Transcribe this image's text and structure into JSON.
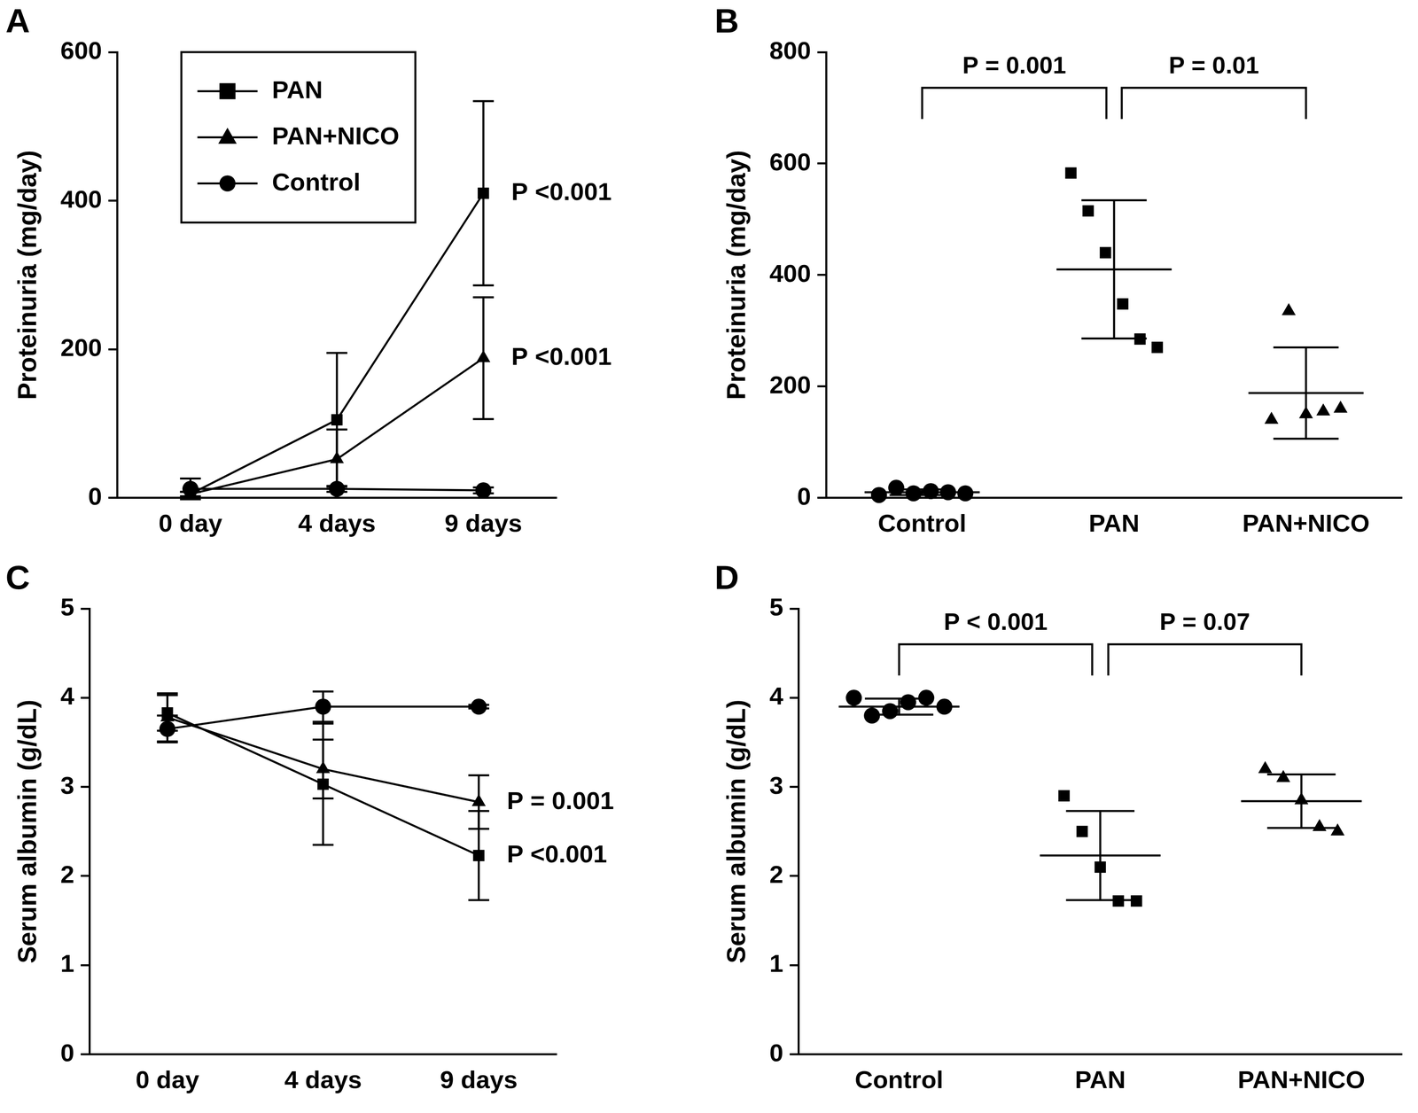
{
  "chart_data": [
    {
      "panel": "A",
      "type": "line",
      "y_label": "Proteinuria (mg/day)",
      "categories": [
        "0 day",
        "4 days",
        "9 days"
      ],
      "ylim": [
        0,
        600
      ],
      "yticks": [
        0,
        200,
        400,
        600
      ],
      "grid": false,
      "legend": "upper left",
      "series": [
        {
          "name": "PAN",
          "color": "#000000",
          "marker": "square",
          "values": [
            5,
            105,
            410
          ],
          "errors": [
            3,
            90,
            124
          ]
        },
        {
          "name": "PAN+NICO",
          "color": "#000000",
          "marker": "triangle",
          "values": [
            5,
            52,
            188
          ],
          "errors": [
            3,
            40,
            82
          ]
        },
        {
          "name": "Control",
          "color": "#000000",
          "marker": "circle",
          "values": [
            12,
            12,
            10
          ],
          "errors": [
            14,
            4,
            4
          ]
        }
      ],
      "annotations": [
        {
          "text": "P <0.001",
          "series": "PAN"
        },
        {
          "text": "P <0.001",
          "series": "PAN+NICO"
        }
      ]
    },
    {
      "panel": "B",
      "type": "dot",
      "y_label": "Proteinuria (mg/day)",
      "categories": [
        "Control",
        "PAN",
        "PAN+NICO"
      ],
      "ylim": [
        0,
        800
      ],
      "yticks": [
        0,
        200,
        400,
        600,
        800
      ],
      "grid": false,
      "color": "#000000",
      "markers": [
        "circle",
        "square",
        "triangle"
      ],
      "points": [
        [
          5,
          18,
          8,
          12,
          10,
          8
        ],
        [
          583,
          515,
          440,
          348,
          285,
          270
        ],
        [
          140,
          335,
          150,
          155,
          160
        ]
      ],
      "means": [
        10,
        410,
        188
      ],
      "sds": [
        5,
        124,
        82
      ],
      "annotations": [
        {
          "text": "P = 0.001",
          "from": "Control",
          "to": "PAN"
        },
        {
          "text": "P = 0.01",
          "from": "PAN",
          "to": "PAN+NICO"
        }
      ]
    },
    {
      "panel": "C",
      "type": "line",
      "y_label": "Serum albumin (g/dL)",
      "categories": [
        "0 day",
        "4 days",
        "9 days"
      ],
      "ylim": [
        0,
        5
      ],
      "yticks": [
        0,
        1,
        2,
        3,
        4,
        5
      ],
      "grid": false,
      "series": [
        {
          "name": "PAN",
          "color": "#000000",
          "marker": "square",
          "values": [
            3.83,
            3.03,
            2.23
          ],
          "errors": [
            0.2,
            0.68,
            0.5
          ]
        },
        {
          "name": "PAN+NICO",
          "color": "#000000",
          "marker": "triangle",
          "values": [
            3.78,
            3.2,
            2.83
          ],
          "errors": [
            0.27,
            0.33,
            0.3
          ]
        },
        {
          "name": "Control",
          "color": "#000000",
          "marker": "circle",
          "values": [
            3.65,
            3.9,
            3.9
          ],
          "errors": [
            0.15,
            0.17,
            0.02
          ]
        }
      ],
      "annotations": [
        {
          "text": "P = 0.001",
          "series": "PAN+NICO"
        },
        {
          "text": "P <0.001",
          "series": "PAN"
        }
      ]
    },
    {
      "panel": "D",
      "type": "dot",
      "y_label": "Serum albumin (g/dL)",
      "categories": [
        "Control",
        "PAN",
        "PAN+NICO"
      ],
      "ylim": [
        0,
        5
      ],
      "yticks": [
        0,
        1,
        2,
        3,
        4,
        5
      ],
      "grid": false,
      "color": "#000000",
      "markers": [
        "circle",
        "square",
        "triangle"
      ],
      "points": [
        [
          4.0,
          3.8,
          3.85,
          3.95,
          4.0,
          3.9
        ],
        [
          2.9,
          2.5,
          2.1,
          1.72,
          1.72
        ],
        [
          3.2,
          3.1,
          2.85,
          2.55,
          2.5
        ]
      ],
      "means": [
        3.9,
        2.23,
        2.84
      ],
      "sds": [
        0.09,
        0.5,
        0.3
      ],
      "annotations": [
        {
          "text": "P < 0.001",
          "from": "Control",
          "to": "PAN"
        },
        {
          "text": "P = 0.07",
          "from": "PAN",
          "to": "PAN+NICO"
        }
      ]
    }
  ]
}
